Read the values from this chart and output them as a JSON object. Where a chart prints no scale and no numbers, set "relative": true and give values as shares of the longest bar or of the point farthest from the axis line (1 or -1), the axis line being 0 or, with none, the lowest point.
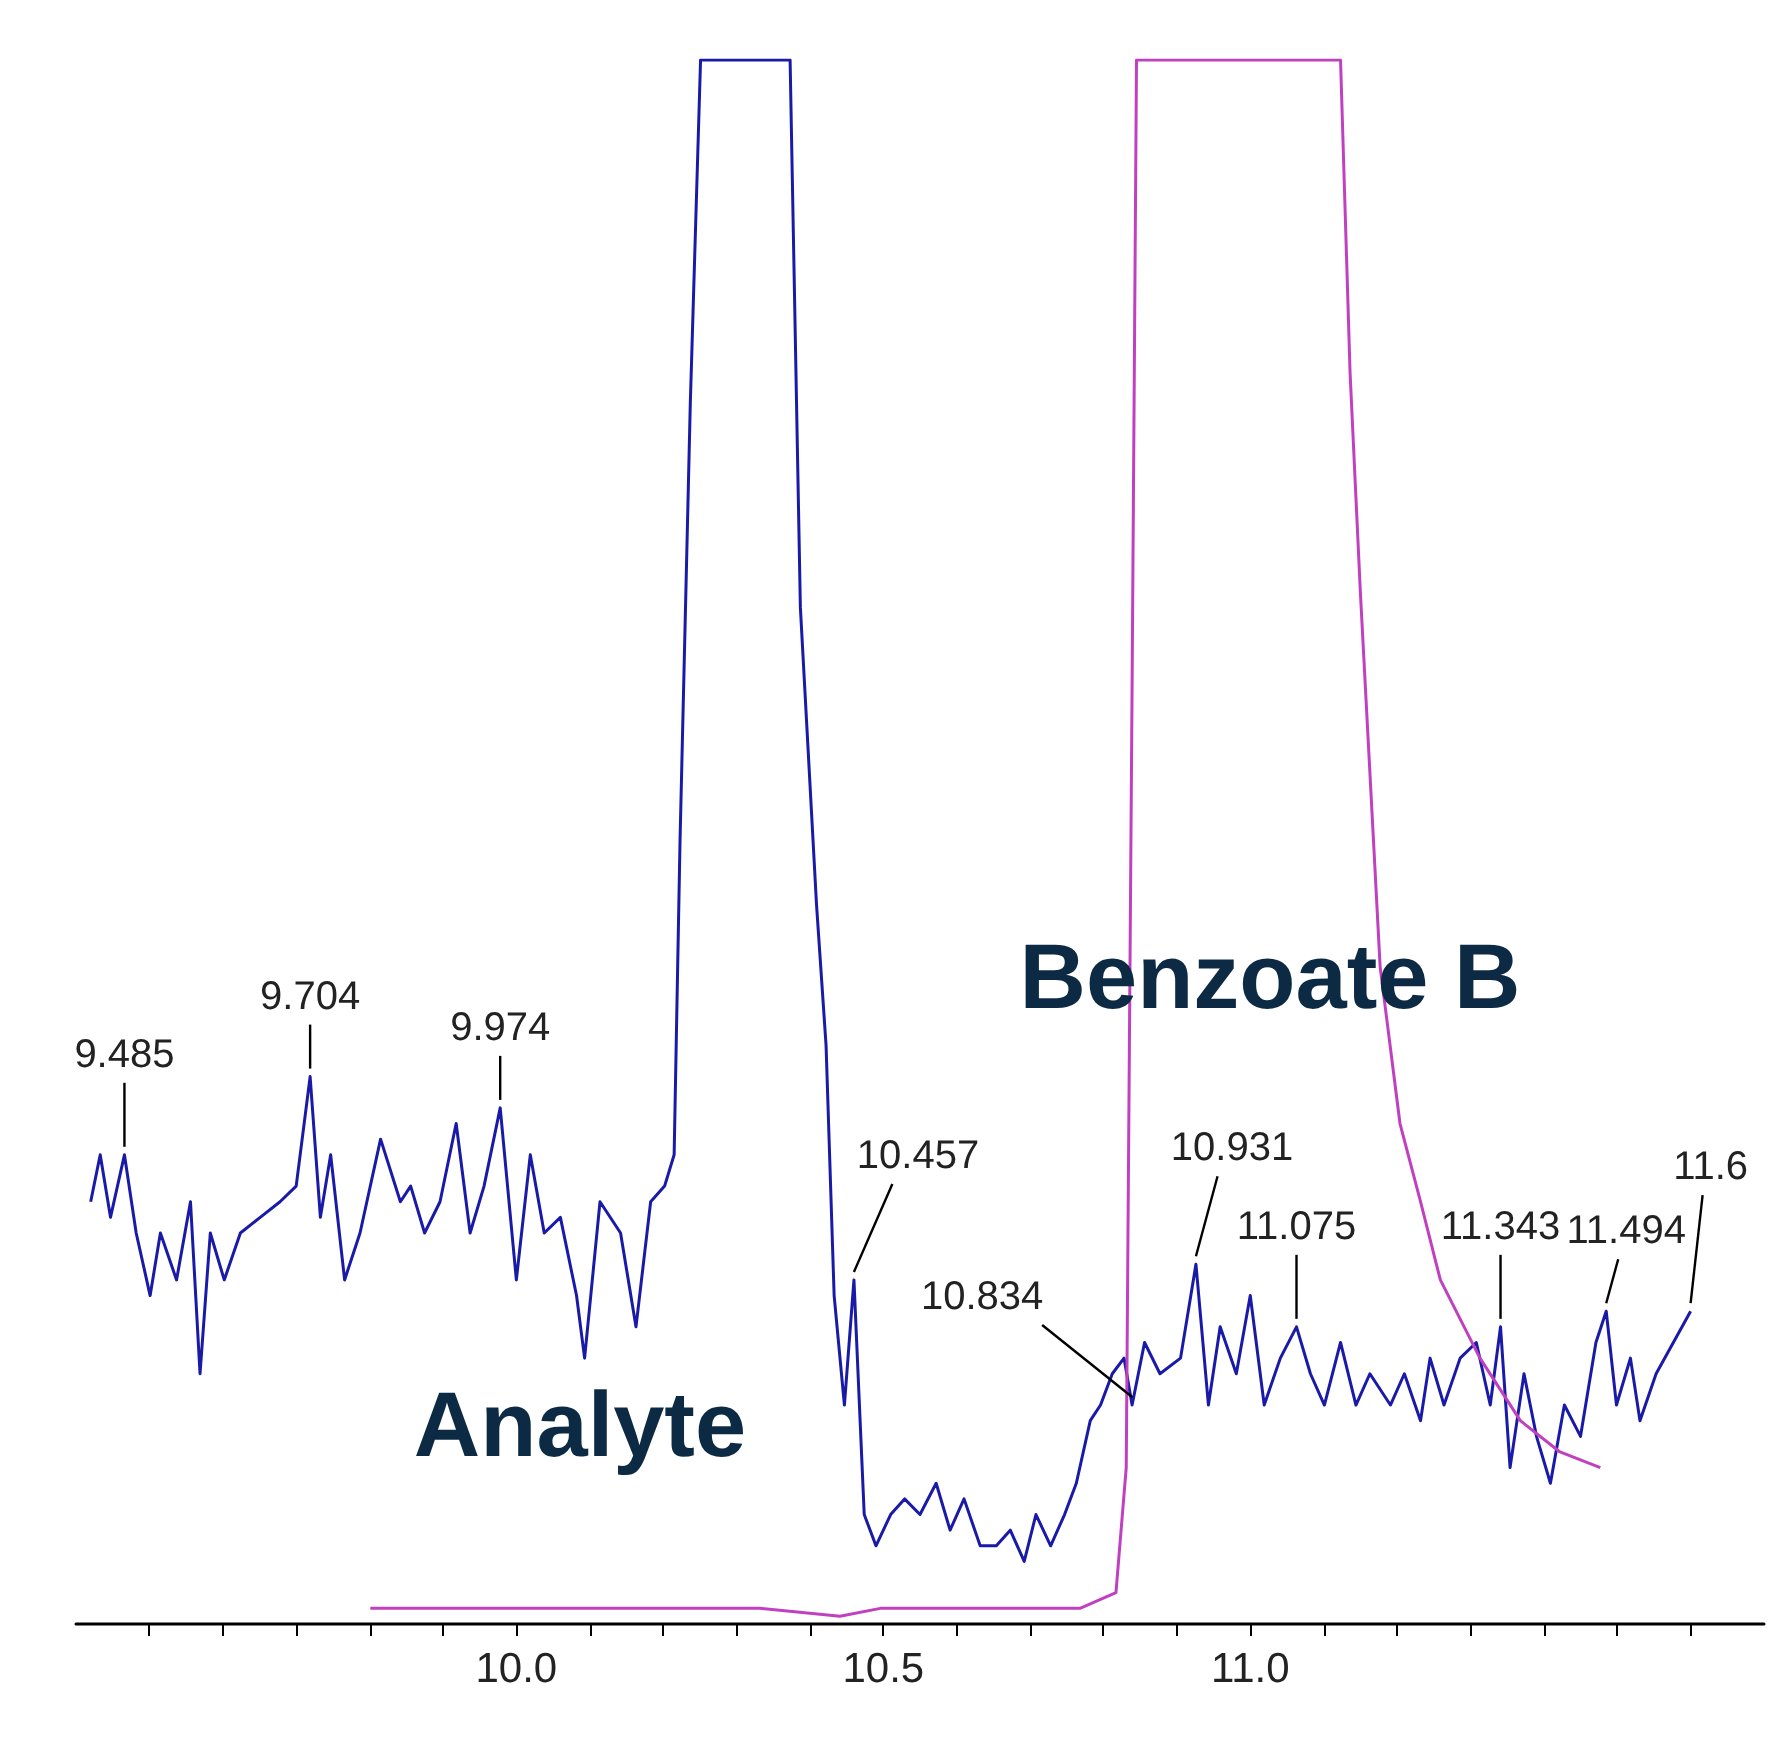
{
  "chart_data": {
    "type": "line",
    "relative": true,
    "tick_labels": "x",
    "xlim": [
      9.4,
      11.7
    ],
    "xticks": [
      {
        "value": 9.5,
        "label": null
      },
      {
        "value": 9.6,
        "label": null
      },
      {
        "value": 9.7,
        "label": null
      },
      {
        "value": 9.8,
        "label": null
      },
      {
        "value": 9.9,
        "label": null
      },
      {
        "value": 10,
        "label": "10.0"
      },
      {
        "value": 10.1,
        "label": null
      },
      {
        "value": 10.2,
        "label": null
      },
      {
        "value": 10.3,
        "label": null
      },
      {
        "value": 10.4,
        "label": null
      },
      {
        "value": 10.5,
        "label": "10.5"
      },
      {
        "value": 10.6,
        "label": null
      },
      {
        "value": 10.7,
        "label": null
      },
      {
        "value": 10.8,
        "label": null
      },
      {
        "value": 10.9,
        "label": null
      },
      {
        "value": 11,
        "label": "11.0"
      },
      {
        "value": 11.1,
        "label": null
      },
      {
        "value": 11.2,
        "label": null
      },
      {
        "value": 11.3,
        "label": null
      },
      {
        "value": 11.4,
        "label": null
      },
      {
        "value": 11.5,
        "label": null
      },
      {
        "value": 11.6,
        "label": null
      }
    ],
    "series": [
      {
        "name": "Analyte",
        "color": "#1a1aa8",
        "x": [
          9.42,
          9.433,
          9.447,
          9.466,
          9.482,
          9.501,
          9.515,
          9.537,
          9.556,
          9.569,
          9.583,
          9.602,
          9.624,
          9.651,
          9.678,
          9.7,
          9.719,
          9.733,
          9.747,
          9.766,
          9.787,
          9.815,
          9.842,
          9.856,
          9.875,
          9.896,
          9.918,
          9.937,
          9.956,
          9.978,
          10,
          10.019,
          10.038,
          10.06,
          10.082,
          10.093,
          10.114,
          10.142,
          10.163,
          10.183,
          10.202,
          10.215,
          10.223,
          10.237,
          10.251,
          10.373,
          10.387,
          10.409,
          10.422,
          10.433,
          10.447,
          10.46,
          10.474,
          10.49,
          10.51,
          10.529,
          10.55,
          10.572,
          10.591,
          10.61,
          10.632,
          10.654,
          10.673,
          10.692,
          10.708,
          10.728,
          10.747,
          10.763,
          10.782,
          10.796,
          10.812,
          10.828,
          10.839,
          10.856,
          10.877,
          10.905,
          10.926,
          10.943,
          10.959,
          10.981,
          11,
          11.019,
          11.041,
          11.063,
          11.082,
          11.101,
          11.123,
          11.144,
          11.163,
          11.191,
          11.21,
          11.232,
          11.245,
          11.264,
          11.286,
          11.308,
          11.327,
          11.341,
          11.354,
          11.373,
          11.39,
          11.409,
          11.428,
          11.45,
          11.471,
          11.485,
          11.499,
          11.518,
          11.531,
          11.553,
          11.6
        ],
        "values": [
          0.27,
          0.3,
          0.26,
          0.3,
          0.25,
          0.21,
          0.25,
          0.22,
          0.27,
          0.16,
          0.25,
          0.22,
          0.25,
          0.26,
          0.27,
          0.28,
          0.35,
          0.26,
          0.3,
          0.22,
          0.25,
          0.31,
          0.27,
          0.28,
          0.25,
          0.27,
          0.32,
          0.25,
          0.28,
          0.33,
          0.22,
          0.3,
          0.25,
          0.26,
          0.21,
          0.17,
          0.27,
          0.25,
          0.19,
          0.27,
          0.28,
          0.3,
          0.5,
          0.78,
          1,
          1,
          0.65,
          0.46,
          0.37,
          0.21,
          0.14,
          0.22,
          0.07,
          0.05,
          0.07,
          0.08,
          0.07,
          0.09,
          0.06,
          0.08,
          0.05,
          0.05,
          0.06,
          0.04,
          0.07,
          0.05,
          0.07,
          0.09,
          0.13,
          0.14,
          0.16,
          0.17,
          0.14,
          0.18,
          0.16,
          0.17,
          0.23,
          0.14,
          0.19,
          0.16,
          0.21,
          0.14,
          0.17,
          0.19,
          0.16,
          0.14,
          0.18,
          0.14,
          0.16,
          0.14,
          0.16,
          0.13,
          0.17,
          0.14,
          0.17,
          0.18,
          0.14,
          0.19,
          0.1,
          0.16,
          0.12,
          0.09,
          0.14,
          0.12,
          0.18,
          0.2,
          0.14,
          0.17,
          0.13,
          0.16,
          0.2
        ]
      },
      {
        "name": "Benzoate B",
        "color": "#c040c0",
        "x": [
          9.801,
          10.332,
          10.441,
          10.496,
          10.768,
          10.817,
          10.831,
          10.839,
          10.845,
          11.123,
          11.136,
          11.15,
          11.177,
          11.204,
          11.232,
          11.259,
          11.313,
          11.368,
          11.422,
          11.477
        ],
        "values": [
          0.01,
          0.01,
          0.005,
          0.01,
          0.01,
          0.02,
          0.1,
          0.6,
          1,
          1,
          0.8,
          0.66,
          0.42,
          0.32,
          0.27,
          0.22,
          0.17,
          0.13,
          0.11,
          0.1
        ]
      }
    ],
    "annotations": [
      {
        "text": "9.485",
        "x": 9.466,
        "y": 0.3
      },
      {
        "text": "9.704",
        "x": 9.719,
        "y": 0.35
      },
      {
        "text": "9.974",
        "x": 9.978,
        "y": 0.33
      },
      {
        "text": "10.457",
        "x": 10.46,
        "y": 0.22
      },
      {
        "text": "10.834",
        "x": 10.839,
        "y": 0.14
      },
      {
        "text": "10.931",
        "x": 10.926,
        "y": 0.23
      },
      {
        "text": "11.075",
        "x": 11.063,
        "y": 0.19
      },
      {
        "text": "11.343",
        "x": 11.341,
        "y": 0.19
      },
      {
        "text": "11.494",
        "x": 11.485,
        "y": 0.2
      },
      {
        "text": "11.6",
        "x": 11.6,
        "y": 0.2
      }
    ]
  }
}
